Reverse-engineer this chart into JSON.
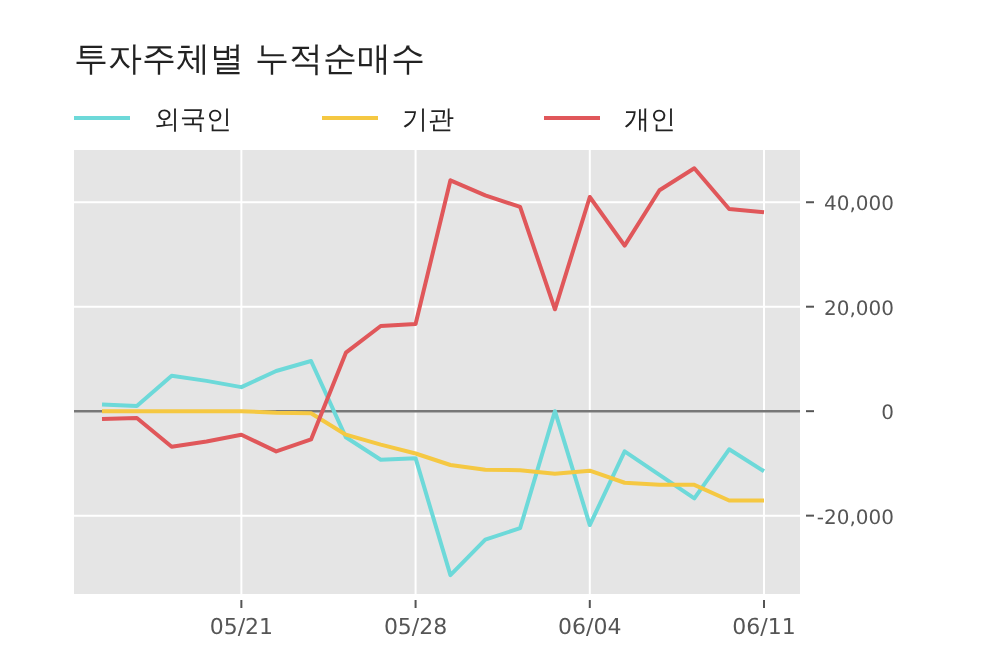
{
  "chart_data": {
    "type": "line",
    "title": "투자주체별 누적순매수",
    "categories": [
      null,
      null,
      null,
      null,
      "05/21",
      null,
      null,
      null,
      null,
      "05/28",
      null,
      null,
      null,
      null,
      "06/04",
      null,
      null,
      null,
      null,
      "06/11"
    ],
    "series": [
      {
        "name": "외국인",
        "color": "#6dd9d9",
        "values": [
          1300,
          1000,
          6800,
          5800,
          4600,
          7700,
          9600,
          -5000,
          -9300,
          -9000,
          -31400,
          -24600,
          -22400,
          0,
          -21800,
          -7700,
          -12200,
          -16700,
          -7300,
          -11500
        ]
      },
      {
        "name": "기관",
        "color": "#f5c842",
        "values": [
          0,
          0,
          0,
          0,
          0,
          -300,
          -400,
          -4500,
          -6400,
          -8100,
          -10300,
          -11200,
          -11300,
          -12000,
          -11400,
          -13700,
          -14100,
          -14100,
          -17100,
          -17100
        ]
      },
      {
        "name": "개인",
        "color": "#e0575a",
        "values": [
          -1500,
          -1300,
          -6800,
          -5800,
          -4500,
          -7700,
          -5400,
          11200,
          16300,
          16700,
          44200,
          41300,
          39100,
          19500,
          41000,
          31700,
          42300,
          46500,
          38700,
          38100
        ]
      }
    ],
    "ylim": [
      -35000,
      50000
    ],
    "yticks": [
      {
        "value": -20000,
        "label": "-20,000"
      },
      {
        "value": 0,
        "label": "0"
      },
      {
        "value": 20000,
        "label": "20,000"
      },
      {
        "value": 40000,
        "label": "40,000"
      }
    ],
    "ref_lines": [
      {
        "axis": "y",
        "value": 0,
        "color": "#777777"
      }
    ],
    "grid": true,
    "legend": "top left",
    "marker": "none",
    "line_style": "solid"
  }
}
